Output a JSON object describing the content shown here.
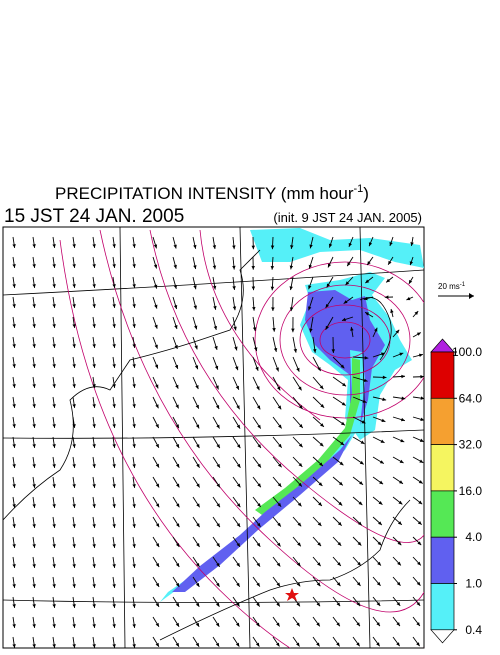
{
  "title": {
    "main": "PRECIPITATION INTENSITY (mm hour",
    "exponent": "-1",
    "close": ")"
  },
  "valid_time": "15 JST 24 JAN. 2005",
  "init_time": "(init. 9 JST 24 JAN. 2005)",
  "wind_reference": {
    "text": "20 ms",
    "exponent": "-1"
  },
  "colorbar": {
    "levels": [
      {
        "value": 100,
        "label": "100.0"
      },
      {
        "value": 64,
        "label": "64.0"
      },
      {
        "value": 32,
        "label": "32.0"
      },
      {
        "value": 16,
        "label": "16.0"
      },
      {
        "value": 4,
        "label": "4.0"
      },
      {
        "value": 1,
        "label": "1.0"
      },
      {
        "value": 0.4,
        "label": "0.4"
      }
    ],
    "colors": [
      "#dd0000",
      "#f5a030",
      "#f5f560",
      "#55e855",
      "#6060f0",
      "#55f0f8"
    ],
    "over_color": "#b020e0",
    "under_color": "#ffffff"
  }
}
